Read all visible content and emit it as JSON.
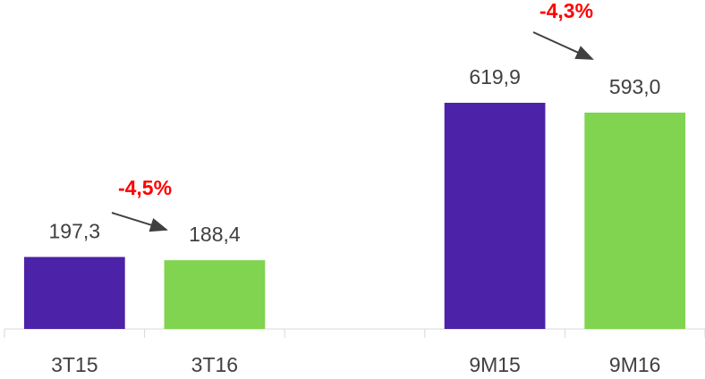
{
  "chart_data": {
    "type": "bar",
    "categories": [
      "3T15",
      "3T16",
      null,
      "9M15",
      "9M16"
    ],
    "values": [
      197.3,
      188.4,
      null,
      619.9,
      593.0
    ],
    "value_labels": [
      "197,3",
      "188,4",
      null,
      "619,9",
      "593,0"
    ],
    "colors": [
      "#4b22a8",
      "#80d44f",
      null,
      "#4b22a8",
      "#80d44f"
    ],
    "annotations": [
      "-4,5%",
      "-4,3%"
    ]
  }
}
